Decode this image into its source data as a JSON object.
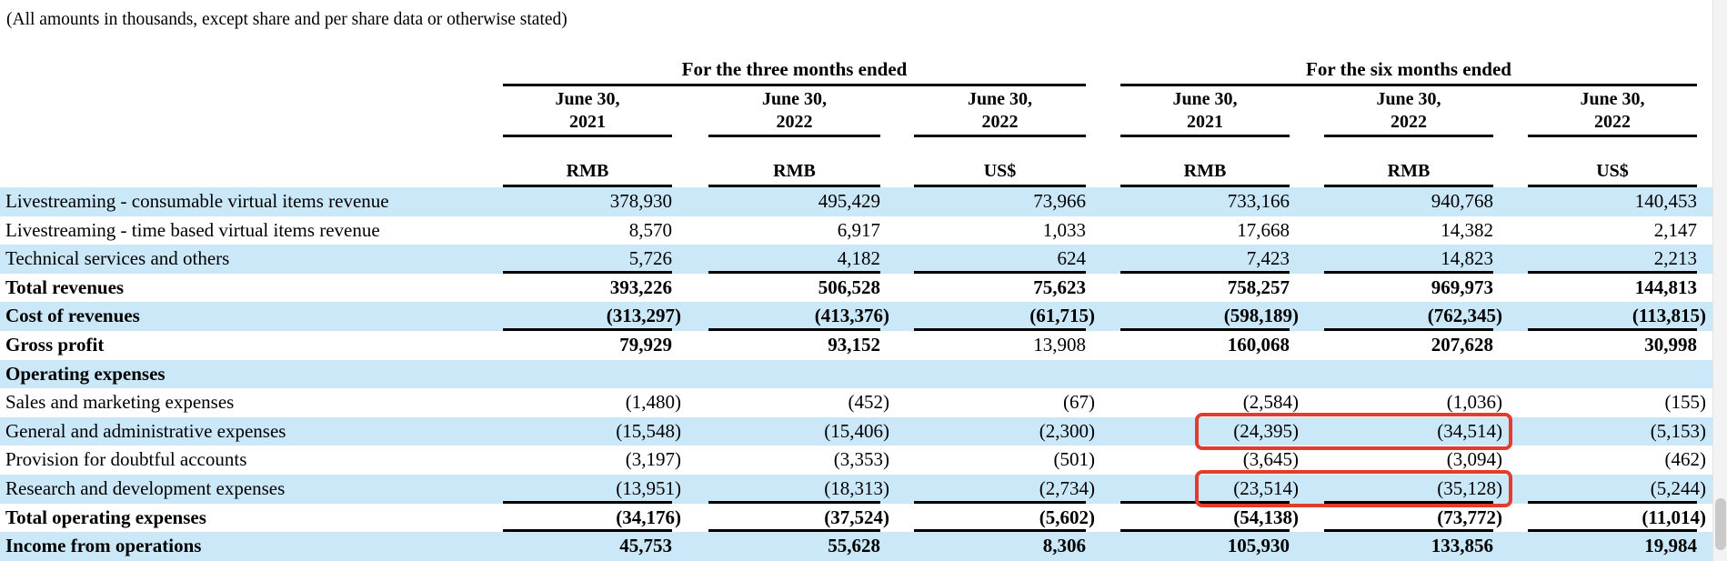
{
  "note": "(All amounts in thousands, except share and per share data or otherwise stated)",
  "table": {
    "col_groups": [
      {
        "label": "For the three months ended"
      },
      {
        "label": "For the six months ended"
      }
    ],
    "columns": [
      {
        "group": 0,
        "date_line1": "June 30,",
        "date_line2": "2021",
        "currency": "RMB"
      },
      {
        "group": 0,
        "date_line1": "June 30,",
        "date_line2": "2022",
        "currency": "RMB"
      },
      {
        "group": 0,
        "date_line1": "June 30,",
        "date_line2": "2022",
        "currency": "US$"
      },
      {
        "group": 1,
        "date_line1": "June 30,",
        "date_line2": "2021",
        "currency": "RMB"
      },
      {
        "group": 1,
        "date_line1": "June 30,",
        "date_line2": "2022",
        "currency": "RMB"
      },
      {
        "group": 1,
        "date_line1": "June 30,",
        "date_line2": "2022",
        "currency": "US$"
      }
    ],
    "rows": [
      {
        "label": "Livestreaming - consumable virtual items revenue",
        "bold": false,
        "shaded": true,
        "rule_below": false,
        "values": [
          "378,930",
          "495,429",
          "73,966",
          "733,166",
          "940,768",
          "140,453"
        ]
      },
      {
        "label": "Livestreaming - time based virtual items revenue",
        "bold": false,
        "shaded": false,
        "rule_below": false,
        "values": [
          "8,570",
          "6,917",
          "1,033",
          "17,668",
          "14,382",
          "2,147"
        ]
      },
      {
        "label": "Technical services and others",
        "bold": false,
        "shaded": true,
        "rule_below": true,
        "values": [
          "5,726",
          "4,182",
          "624",
          "7,423",
          "14,823",
          "2,213"
        ]
      },
      {
        "label": "Total revenues",
        "bold": true,
        "shaded": false,
        "rule_below": false,
        "values": [
          "393,226",
          "506,528",
          "75,623",
          "758,257",
          "969,973",
          "144,813"
        ]
      },
      {
        "label": "Cost of revenues",
        "bold": true,
        "shaded": true,
        "rule_below": true,
        "values": [
          "(313,297)",
          "(413,376)",
          "(61,715)",
          "(598,189)",
          "(762,345)",
          "(113,815)"
        ]
      },
      {
        "label": "Gross profit",
        "bold": true,
        "shaded": false,
        "rule_below": false,
        "values": [
          "79,929",
          "93,152",
          "13,908",
          "160,068",
          "207,628",
          "30,998"
        ],
        "normal_cells": [
          2
        ]
      },
      {
        "label": "Operating expenses",
        "bold": true,
        "shaded": true,
        "rule_below": false,
        "values": [
          "",
          "",
          "",
          "",
          "",
          ""
        ]
      },
      {
        "label": "Sales and marketing expenses",
        "bold": false,
        "shaded": false,
        "rule_below": false,
        "values": [
          "(1,480)",
          "(452)",
          "(67)",
          "(2,584)",
          "(1,036)",
          "(155)"
        ]
      },
      {
        "label": "General and administrative expenses",
        "bold": false,
        "shaded": true,
        "rule_below": false,
        "values": [
          "(15,548)",
          "(15,406)",
          "(2,300)",
          "(24,395)",
          "(34,514)",
          "(5,153)"
        ],
        "highlight": [
          3,
          4
        ]
      },
      {
        "label": "Provision for doubtful accounts",
        "bold": false,
        "shaded": false,
        "rule_below": false,
        "values": [
          "(3,197)",
          "(3,353)",
          "(501)",
          "(3,645)",
          "(3,094)",
          "(462)"
        ]
      },
      {
        "label": "Research and development expenses",
        "bold": false,
        "shaded": true,
        "rule_below": true,
        "values": [
          "(13,951)",
          "(18,313)",
          "(2,734)",
          "(23,514)",
          "(35,128)",
          "(5,244)"
        ],
        "highlight": [
          3,
          4
        ]
      },
      {
        "label": "Total operating expenses",
        "bold": true,
        "shaded": false,
        "rule_below": true,
        "values": [
          "(34,176)",
          "(37,524)",
          "(5,602)",
          "(54,138)",
          "(73,772)",
          "(11,014)"
        ]
      },
      {
        "label": "Income from operations",
        "bold": true,
        "shaded": true,
        "rule_below": false,
        "values": [
          "45,753",
          "55,628",
          "8,306",
          "105,930",
          "133,856",
          "19,984"
        ]
      }
    ]
  },
  "colors": {
    "stripe_blue": "#cbe8f9",
    "highlight_red": "#e33b2c",
    "rule_black": "#000000"
  }
}
